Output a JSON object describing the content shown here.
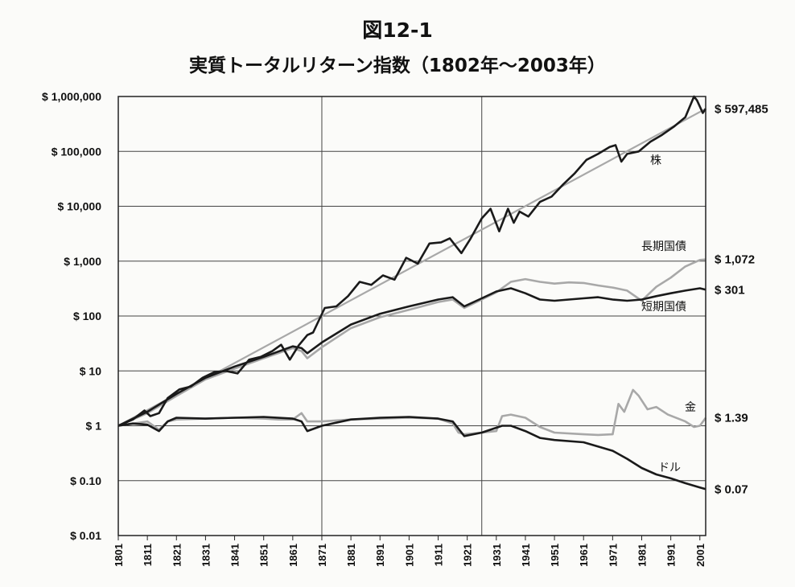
{
  "figure_label": "図12-1",
  "chart_data": {
    "type": "line",
    "title": "実質トータルリターン指数（1802年～2003年）",
    "y_scale": "log",
    "ylim": [
      0.01,
      1000000
    ],
    "xlim": [
      1801,
      2003
    ],
    "y_ticks": [
      {
        "value": 1000000,
        "label": "$ 1,000,000"
      },
      {
        "value": 100000,
        "label": "$ 100,000"
      },
      {
        "value": 10000,
        "label": "$ 10,000"
      },
      {
        "value": 1000,
        "label": "$ 1,000"
      },
      {
        "value": 100,
        "label": "$ 100"
      },
      {
        "value": 10,
        "label": "$ 10"
      },
      {
        "value": 1,
        "label": "$ 1"
      },
      {
        "value": 0.1,
        "label": "$ 0.10"
      },
      {
        "value": 0.01,
        "label": "$ 0.01"
      }
    ],
    "x_ticks": [
      "1801",
      "1811",
      "1821",
      "1831",
      "1841",
      "1851",
      "1861",
      "1871",
      "1881",
      "1891",
      "1901",
      "1911",
      "1921",
      "1931",
      "1941",
      "1951",
      "1961",
      "1971",
      "1981",
      "1991",
      "2001"
    ],
    "gridlines_x": [
      1871,
      1926
    ],
    "grid_horizontal": true,
    "series": [
      {
        "name": "株",
        "end_label": "$ 597,485",
        "color": "#1a1a1a",
        "x": [
          1801,
          1806,
          1810,
          1812,
          1815,
          1818,
          1822,
          1826,
          1830,
          1834,
          1838,
          1842,
          1846,
          1850,
          1854,
          1857,
          1860,
          1863,
          1866,
          1868,
          1872,
          1876,
          1880,
          1884,
          1888,
          1892,
          1896,
          1900,
          1904,
          1908,
          1912,
          1915,
          1919,
          1922,
          1926,
          1929,
          1932,
          1935,
          1937,
          1939,
          1942,
          1946,
          1950,
          1954,
          1958,
          1962,
          1966,
          1970,
          1972,
          1974,
          1976,
          1980,
          1984,
          1988,
          1992,
          1996,
          1999,
          2000,
          2002,
          2003
        ],
        "values": [
          1,
          1.3,
          1.9,
          1.5,
          1.7,
          3.2,
          4.6,
          5.2,
          7.5,
          9.5,
          10,
          9,
          16,
          18,
          23,
          30,
          16,
          29,
          45,
          50,
          140,
          150,
          230,
          420,
          370,
          550,
          460,
          1150,
          900,
          2100,
          2200,
          2600,
          1400,
          2500,
          6000,
          9000,
          3500,
          9000,
          5000,
          8000,
          6500,
          12000,
          15000,
          25000,
          40000,
          70000,
          90000,
          120000,
          130000,
          65000,
          90000,
          100000,
          150000,
          200000,
          280000,
          420000,
          1000000,
          850000,
          500000,
          597485
        ]
      },
      {
        "name": "長期国債",
        "end_label": "$ 1,072",
        "color": "#a8a8a8",
        "x": [
          1801,
          1811,
          1821,
          1831,
          1841,
          1851,
          1861,
          1864,
          1866,
          1871,
          1881,
          1891,
          1901,
          1911,
          1916,
          1920,
          1926,
          1931,
          1936,
          1941,
          1946,
          1951,
          1956,
          1961,
          1966,
          1971,
          1976,
          1981,
          1986,
          1991,
          1996,
          2001,
          2003
        ],
        "values": [
          1,
          1.7,
          3.5,
          7,
          11,
          17,
          26,
          23,
          17,
          27,
          60,
          95,
          130,
          180,
          200,
          140,
          200,
          270,
          420,
          470,
          420,
          390,
          410,
          400,
          360,
          330,
          290,
          190,
          340,
          500,
          800,
          1050,
          1072
        ]
      },
      {
        "name": "短期国債",
        "end_label": "$ 301",
        "color": "#1a1a1a",
        "x": [
          1801,
          1811,
          1821,
          1831,
          1841,
          1851,
          1861,
          1864,
          1866,
          1871,
          1881,
          1891,
          1901,
          1911,
          1916,
          1920,
          1926,
          1931,
          1936,
          1941,
          1946,
          1951,
          1956,
          1961,
          1966,
          1971,
          1976,
          1981,
          1986,
          1991,
          1996,
          2001,
          2003
        ],
        "values": [
          1,
          1.8,
          3.8,
          7.5,
          12,
          18,
          28,
          26,
          21,
          33,
          70,
          110,
          150,
          200,
          220,
          150,
          210,
          280,
          320,
          260,
          200,
          190,
          200,
          210,
          220,
          200,
          190,
          200,
          230,
          260,
          290,
          320,
          301
        ]
      },
      {
        "name": "金",
        "end_label": "$ 1.39",
        "color": "#a8a8a8",
        "x": [
          1801,
          1811,
          1815,
          1818,
          1821,
          1831,
          1841,
          1851,
          1856,
          1861,
          1864,
          1866,
          1871,
          1881,
          1891,
          1901,
          1911,
          1916,
          1918,
          1920,
          1926,
          1931,
          1933,
          1936,
          1941,
          1946,
          1951,
          1961,
          1966,
          1971,
          1973,
          1975,
          1978,
          1980,
          1983,
          1986,
          1990,
          1996,
          1999,
          2001,
          2003
        ],
        "values": [
          1,
          1.2,
          0.85,
          1.2,
          1.3,
          1.35,
          1.4,
          1.35,
          1.3,
          1.3,
          1.7,
          1.2,
          1.2,
          1.3,
          1.35,
          1.4,
          1.35,
          1.1,
          0.75,
          0.7,
          0.75,
          0.8,
          1.5,
          1.6,
          1.4,
          0.95,
          0.75,
          0.7,
          0.68,
          0.7,
          2.5,
          1.8,
          4.5,
          3.5,
          2.0,
          2.2,
          1.6,
          1.2,
          0.95,
          1.0,
          1.39
        ]
      },
      {
        "name": "ドル",
        "end_label": "$ 0.07",
        "color": "#1a1a1a",
        "x": [
          1801,
          1806,
          1811,
          1815,
          1818,
          1821,
          1831,
          1841,
          1851,
          1861,
          1864,
          1866,
          1871,
          1881,
          1891,
          1901,
          1911,
          1916,
          1920,
          1926,
          1933,
          1936,
          1941,
          1946,
          1951,
          1961,
          1971,
          1976,
          1981,
          1986,
          1991,
          1996,
          2001,
          2003
        ],
        "values": [
          1,
          1.1,
          1.05,
          0.8,
          1.2,
          1.4,
          1.35,
          1.4,
          1.45,
          1.35,
          1.2,
          0.8,
          1.0,
          1.3,
          1.4,
          1.45,
          1.35,
          1.2,
          0.65,
          0.75,
          1.0,
          1.0,
          0.8,
          0.6,
          0.55,
          0.5,
          0.35,
          0.25,
          0.17,
          0.13,
          0.11,
          0.09,
          0.075,
          0.07
        ]
      },
      {
        "name": "",
        "end_label": "",
        "color": "#a8a8a8",
        "x": [
          1801,
          2003
        ],
        "values": [
          1,
          597485
        ]
      }
    ]
  }
}
